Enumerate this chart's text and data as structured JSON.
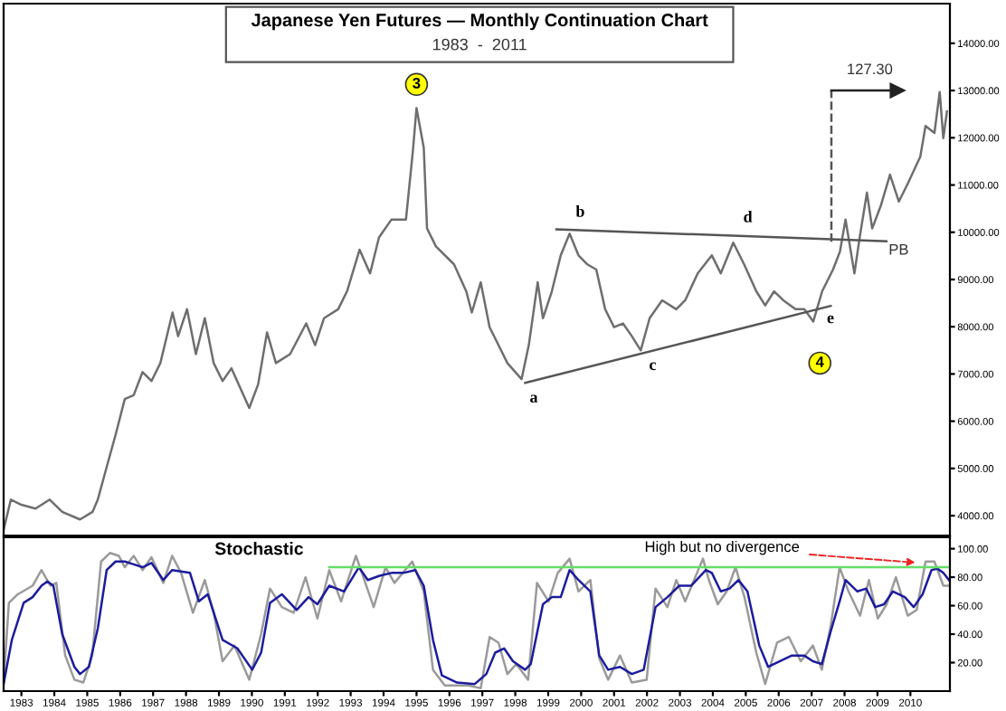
{
  "chart_data": [
    {
      "type": "line",
      "title": "Japanese Yen Futures — Monthly Continuation Chart",
      "subtitle": "1983  -  2011",
      "tick_labels": "y",
      "grid": false,
      "legend": false,
      "xlim": [
        1982.46,
        2011.2
      ],
      "ylim": [
        3580,
        14840
      ],
      "yticks": [
        {
          "value": 4000,
          "label": "4000.00"
        },
        {
          "value": 5000,
          "label": "5000.00"
        },
        {
          "value": 6000,
          "label": "6000.00"
        },
        {
          "value": 7000,
          "label": "7000.00"
        },
        {
          "value": 8000,
          "label": "8000.00"
        },
        {
          "value": 9000,
          "label": "9000.00"
        },
        {
          "value": 10000,
          "label": "10000.00"
        },
        {
          "value": 11000,
          "label": "11000.00"
        },
        {
          "value": 12000,
          "label": "12000.00"
        },
        {
          "value": 13000,
          "label": "13000.00"
        },
        {
          "value": 14000,
          "label": "14000.00"
        }
      ],
      "series": [
        {
          "color": "#6e6e6e",
          "x": [
            1982.46,
            1982.68,
            1983.0,
            1983.43,
            1983.86,
            1984.24,
            1984.78,
            1985.16,
            1985.32,
            1985.59,
            1985.86,
            1986.14,
            1986.41,
            1986.68,
            1986.95,
            1987.22,
            1987.59,
            1987.76,
            1988.03,
            1988.3,
            1988.57,
            1988.84,
            1989.11,
            1989.38,
            1989.92,
            1990.19,
            1990.46,
            1990.73,
            1991.16,
            1991.65,
            1991.92,
            1992.19,
            1992.62,
            1992.89,
            1993.27,
            1993.59,
            1993.86,
            1994.24,
            1994.68,
            1994.89,
            1995.0,
            1995.22,
            1995.32,
            1995.59,
            1996.14,
            1996.51,
            1996.68,
            1996.95,
            1997.22,
            1997.49,
            1997.76,
            1998.19,
            1998.41,
            1998.68,
            1998.84,
            1999.11,
            1999.38,
            1999.65,
            1999.92,
            2000.19,
            2000.46,
            2000.73,
            2001.0,
            2001.27,
            2001.54,
            2001.81,
            2002.08,
            2002.46,
            2002.89,
            2003.16,
            2003.54,
            2003.97,
            2004.24,
            2004.62,
            2004.95,
            2005.32,
            2005.59,
            2005.86,
            2006.14,
            2006.51,
            2006.78,
            2007.05,
            2007.32,
            2007.65,
            2007.86,
            2008.03,
            2008.3,
            2008.46,
            2008.68,
            2008.84,
            2009.11,
            2009.38,
            2009.65,
            2009.92,
            2010.3,
            2010.46,
            2010.73,
            2010.89,
            2011.0,
            2011.11
          ],
          "values": [
            3700,
            4340,
            4230,
            4150,
            4340,
            4080,
            3920,
            4080,
            4340,
            5030,
            5710,
            6470,
            6550,
            7040,
            6850,
            7230,
            8300,
            7800,
            8370,
            7420,
            8180,
            7230,
            6850,
            7120,
            6280,
            6780,
            7880,
            7230,
            7420,
            8070,
            7610,
            8180,
            8370,
            8750,
            9630,
            9130,
            9890,
            10270,
            10270,
            11720,
            12630,
            11790,
            10080,
            9700,
            9320,
            8750,
            8300,
            8940,
            7990,
            7610,
            7230,
            6890,
            7610,
            8940,
            8180,
            8750,
            9510,
            9970,
            9510,
            9320,
            9210,
            8370,
            7990,
            8070,
            7800,
            7500,
            8180,
            8560,
            8370,
            8560,
            9130,
            9510,
            9130,
            9780,
            9320,
            8750,
            8450,
            8750,
            8560,
            8370,
            8370,
            8110,
            8750,
            9210,
            9590,
            10270,
            9130,
            9890,
            10840,
            10080,
            10580,
            11220,
            10650,
            11030,
            11600,
            12250,
            12100,
            12970,
            11990,
            12560
          ]
        },
        {
          "color": "#555555",
          "x": [
            1999.25,
            2009.27
          ],
          "values": [
            10060,
            9810
          ]
        },
        {
          "color": "#555555",
          "x": [
            1998.3,
            2007.58
          ],
          "values": [
            6810,
            8440
          ]
        },
        {
          "color": "#555555",
          "line_style": "dashed",
          "x": [
            2007.6,
            2007.6
          ],
          "values": [
            9800,
            13000
          ]
        },
        {
          "color": "#222222",
          "marker": "triangle",
          "x": [
            2007.6,
            2009.6
          ],
          "values": [
            13000,
            13000
          ]
        }
      ],
      "annotations": [
        {
          "text": "3",
          "x": 1995.0,
          "y": 13130
        },
        {
          "text": "4",
          "x": 2007.25,
          "y": 7230
        },
        "a",
        "b",
        "c",
        "d",
        "e",
        "PB",
        "127.30"
      ]
    },
    {
      "type": "line",
      "title": "Stochastic",
      "grid": false,
      "legend": false,
      "xlim": [
        1982.46,
        2011.2
      ],
      "ylim": [
        0,
        108
      ],
      "xticks": [
        1983,
        1984,
        1985,
        1986,
        1987,
        1988,
        1989,
        1990,
        1991,
        1992,
        1993,
        1994,
        1995,
        1996,
        1997,
        1998,
        1999,
        2000,
        2001,
        2002,
        2003,
        2004,
        2005,
        2006,
        2007,
        2008,
        2009,
        2010
      ],
      "yticks": [
        {
          "value": 20,
          "label": "20.00"
        },
        {
          "value": 40,
          "label": "40.00"
        },
        {
          "value": 60,
          "label": "60.00"
        },
        {
          "value": 80,
          "label": "80.00"
        },
        {
          "value": 100,
          "label": "100.00"
        }
      ],
      "series": [
        {
          "color": "#9a9a9a",
          "x": [
            1982.46,
            1982.62,
            1982.89,
            1983.34,
            1983.61,
            1983.88,
            1984.06,
            1984.33,
            1984.61,
            1984.88,
            1985.15,
            1985.42,
            1985.69,
            1985.96,
            1986.14,
            1986.41,
            1986.68,
            1986.95,
            1987.31,
            1987.58,
            1987.85,
            1988.21,
            1988.57,
            1988.84,
            1989.11,
            1989.47,
            1989.92,
            1990.28,
            1990.55,
            1990.91,
            1991.27,
            1991.63,
            1991.99,
            1992.35,
            1992.71,
            1993.16,
            1993.7,
            1994.06,
            1994.33,
            1994.87,
            1995.22,
            1995.5,
            1995.86,
            1996.58,
            1996.95,
            1997.22,
            1997.49,
            1997.76,
            1998.03,
            1998.39,
            1998.66,
            1999.01,
            1999.29,
            1999.65,
            1999.92,
            2000.28,
            2000.55,
            2000.82,
            2001.18,
            2001.54,
            2001.99,
            2002.26,
            2002.62,
            2002.89,
            2003.16,
            2003.7,
            2003.88,
            2004.15,
            2004.42,
            2004.69,
            2004.96,
            2005.32,
            2005.59,
            2005.95,
            2006.31,
            2006.67,
            2007.04,
            2007.31,
            2007.58,
            2007.85,
            2008.12,
            2008.47,
            2008.74,
            2009.01,
            2009.28,
            2009.56,
            2009.92,
            2010.19,
            2010.46,
            2010.73,
            2011.0,
            2011.17
          ],
          "values": [
            6,
            62,
            68,
            74,
            85,
            74,
            76,
            25,
            8,
            6,
            25,
            91,
            97,
            95,
            87,
            95,
            85,
            94,
            76,
            95,
            83,
            55,
            78,
            55,
            21,
            32,
            8,
            40,
            72,
            59,
            55,
            80,
            51,
            85,
            63,
            95,
            59,
            87,
            76,
            91,
            70,
            15,
            4,
            4,
            2,
            38,
            34,
            12,
            19,
            8,
            76,
            63,
            83,
            93,
            70,
            78,
            23,
            8,
            25,
            6,
            8,
            72,
            59,
            78,
            63,
            93,
            78,
            61,
            70,
            87,
            66,
            27,
            5,
            34,
            38,
            21,
            32,
            15,
            46,
            87,
            70,
            53,
            78,
            51,
            61,
            80,
            53,
            57,
            91,
            91,
            74,
            74
          ]
        },
        {
          "color": "#1c1c9c",
          "x": [
            1982.46,
            1982.71,
            1983.07,
            1983.34,
            1983.61,
            1983.79,
            1983.97,
            1984.24,
            1984.61,
            1984.78,
            1985.05,
            1985.32,
            1985.59,
            1985.86,
            1986.14,
            1986.41,
            1986.68,
            1986.95,
            1987.31,
            1987.58,
            1988.12,
            1988.39,
            1988.66,
            1989.11,
            1989.56,
            1990.01,
            1990.28,
            1990.55,
            1990.91,
            1991.36,
            1991.72,
            1991.99,
            1992.35,
            1992.8,
            1993.25,
            1993.52,
            1993.88,
            1994.24,
            1994.6,
            1994.96,
            1995.22,
            1995.5,
            1995.77,
            1996.23,
            1996.77,
            1997.12,
            1997.39,
            1997.66,
            1997.93,
            1998.3,
            1998.47,
            1998.84,
            1999.11,
            1999.38,
            1999.65,
            1999.92,
            2000.28,
            2000.55,
            2000.82,
            2001.18,
            2001.54,
            2001.9,
            2002.26,
            2002.62,
            2002.98,
            2003.34,
            2003.79,
            2003.97,
            2004.24,
            2004.51,
            2004.78,
            2005.05,
            2005.41,
            2005.68,
            2006.04,
            2006.4,
            2006.77,
            2007.04,
            2007.31,
            2007.58,
            2007.85,
            2008.03,
            2008.39,
            2008.66,
            2008.93,
            2009.2,
            2009.47,
            2009.83,
            2010.1,
            2010.37,
            2010.64,
            2010.82,
            2011.0,
            2011.17
          ],
          "values": [
            5,
            36,
            62,
            66,
            74,
            77,
            74,
            40,
            17,
            12,
            17,
            44,
            85,
            91,
            91,
            89,
            87,
            90,
            78,
            85,
            83,
            63,
            68,
            36,
            30,
            15,
            27,
            62,
            68,
            57,
            66,
            61,
            74,
            70,
            87,
            78,
            81,
            83,
            83,
            85,
            74,
            36,
            11,
            6,
            5,
            12,
            27,
            30,
            21,
            15,
            19,
            61,
            66,
            66,
            85,
            78,
            70,
            25,
            15,
            17,
            12,
            15,
            59,
            66,
            74,
            74,
            85,
            83,
            70,
            72,
            78,
            70,
            32,
            17,
            21,
            25,
            25,
            21,
            19,
            42,
            63,
            78,
            70,
            72,
            59,
            61,
            70,
            66,
            59,
            68,
            85,
            86,
            83,
            78
          ]
        },
        {
          "color": "#66dd66",
          "x": [
            1992.35,
            2011.17
          ],
          "values": [
            87,
            87
          ]
        }
      ],
      "annotations": [
        {
          "text": "High but no divergence",
          "x": 2010.3,
          "y": 90
        }
      ]
    }
  ]
}
